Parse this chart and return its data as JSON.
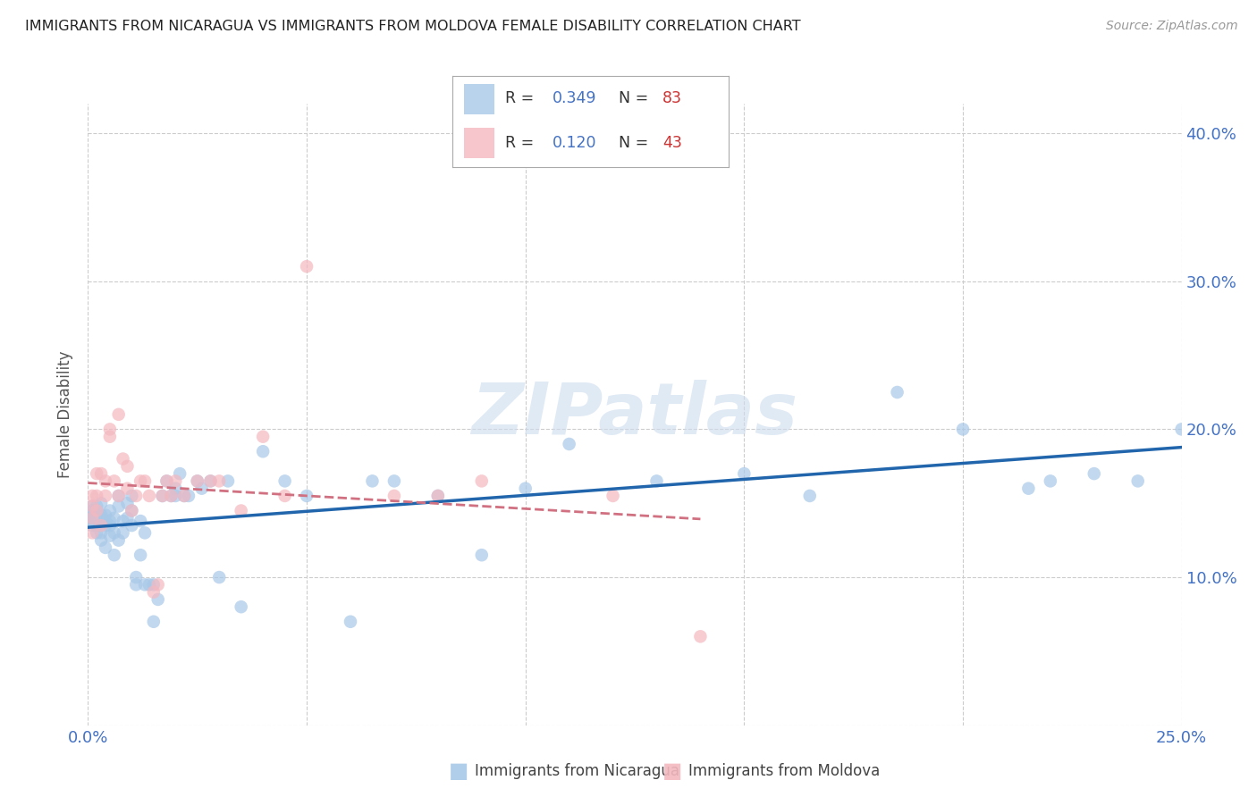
{
  "title": "IMMIGRANTS FROM NICARAGUA VS IMMIGRANTS FROM MOLDOVA FEMALE DISABILITY CORRELATION CHART",
  "source": "Source: ZipAtlas.com",
  "ylabel": "Female Disability",
  "xlim": [
    0.0,
    0.25
  ],
  "ylim": [
    0.0,
    0.42
  ],
  "nicaragua_color": "#a8c8e8",
  "nicaragua_line_color": "#2166ac",
  "moldova_color": "#f4b8c0",
  "moldova_line_color": "#d07080",
  "nicaragua_R": 0.349,
  "nicaragua_N": 83,
  "moldova_R": 0.12,
  "moldova_N": 43,
  "legend_label_nicaragua": "Immigrants from Nicaragua",
  "legend_label_moldova": "Immigrants from Moldova",
  "watermark": "ZIPatlas",
  "background_color": "#ffffff",
  "grid_color": "#cccccc",
  "nicaragua_x": [
    0.001,
    0.001,
    0.001,
    0.001,
    0.001,
    0.001,
    0.002,
    0.002,
    0.002,
    0.002,
    0.002,
    0.002,
    0.003,
    0.003,
    0.003,
    0.003,
    0.003,
    0.003,
    0.004,
    0.004,
    0.004,
    0.004,
    0.005,
    0.005,
    0.005,
    0.005,
    0.006,
    0.006,
    0.006,
    0.007,
    0.007,
    0.007,
    0.008,
    0.008,
    0.009,
    0.009,
    0.01,
    0.01,
    0.01,
    0.011,
    0.011,
    0.012,
    0.012,
    0.013,
    0.013,
    0.014,
    0.015,
    0.015,
    0.016,
    0.017,
    0.018,
    0.019,
    0.02,
    0.02,
    0.021,
    0.022,
    0.023,
    0.025,
    0.026,
    0.028,
    0.03,
    0.032,
    0.035,
    0.04,
    0.045,
    0.05,
    0.06,
    0.065,
    0.07,
    0.08,
    0.09,
    0.1,
    0.11,
    0.13,
    0.15,
    0.165,
    0.185,
    0.2,
    0.215,
    0.22,
    0.23,
    0.24,
    0.25
  ],
  "nicaragua_y": [
    0.14,
    0.145,
    0.138,
    0.142,
    0.135,
    0.148,
    0.13,
    0.145,
    0.148,
    0.138,
    0.142,
    0.135,
    0.125,
    0.14,
    0.15,
    0.13,
    0.142,
    0.138,
    0.12,
    0.135,
    0.142,
    0.138,
    0.128,
    0.135,
    0.145,
    0.138,
    0.115,
    0.13,
    0.14,
    0.125,
    0.148,
    0.155,
    0.13,
    0.138,
    0.14,
    0.15,
    0.135,
    0.145,
    0.155,
    0.095,
    0.1,
    0.115,
    0.138,
    0.095,
    0.13,
    0.095,
    0.07,
    0.095,
    0.085,
    0.155,
    0.165,
    0.155,
    0.155,
    0.16,
    0.17,
    0.155,
    0.155,
    0.165,
    0.16,
    0.165,
    0.1,
    0.165,
    0.08,
    0.185,
    0.165,
    0.155,
    0.07,
    0.165,
    0.165,
    0.155,
    0.115,
    0.16,
    0.19,
    0.165,
    0.17,
    0.155,
    0.225,
    0.2,
    0.16,
    0.165,
    0.17,
    0.165,
    0.2
  ],
  "moldova_x": [
    0.001,
    0.001,
    0.001,
    0.001,
    0.002,
    0.002,
    0.002,
    0.003,
    0.003,
    0.004,
    0.004,
    0.005,
    0.005,
    0.006,
    0.007,
    0.007,
    0.008,
    0.009,
    0.009,
    0.01,
    0.011,
    0.012,
    0.013,
    0.014,
    0.015,
    0.016,
    0.017,
    0.018,
    0.019,
    0.02,
    0.022,
    0.025,
    0.028,
    0.03,
    0.035,
    0.04,
    0.045,
    0.05,
    0.07,
    0.08,
    0.09,
    0.12,
    0.14
  ],
  "moldova_y": [
    0.14,
    0.148,
    0.155,
    0.13,
    0.145,
    0.17,
    0.155,
    0.135,
    0.17,
    0.155,
    0.165,
    0.195,
    0.2,
    0.165,
    0.155,
    0.21,
    0.18,
    0.16,
    0.175,
    0.145,
    0.155,
    0.165,
    0.165,
    0.155,
    0.09,
    0.095,
    0.155,
    0.165,
    0.155,
    0.165,
    0.155,
    0.165,
    0.165,
    0.165,
    0.145,
    0.195,
    0.155,
    0.31,
    0.155,
    0.155,
    0.165,
    0.155,
    0.06
  ]
}
